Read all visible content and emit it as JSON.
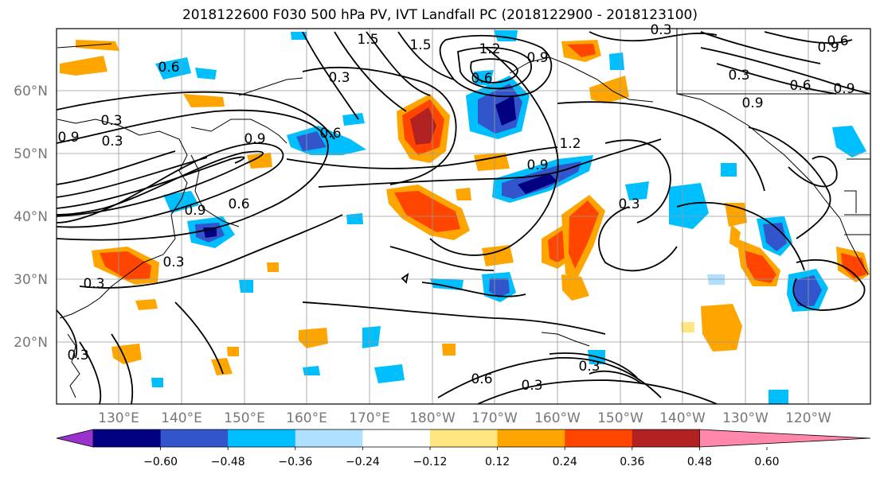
{
  "title": "2018122600 F030 500 hPa PV, IVT Landfall PC (2018122900 - 2018123100)",
  "lat_labels": [
    "60°N",
    "50°N",
    "40°N",
    "30°N",
    "20°N"
  ],
  "lon_labels": [
    "130°E",
    "140°E",
    "150°E",
    "160°E",
    "170°E",
    "180°W",
    "170°W",
    "160°W",
    "150°W",
    "140°W",
    "130°W",
    "120°W"
  ],
  "colorbar": {
    "colors": [
      "#9933cc",
      "#000080",
      "#3355cc",
      "#00bfff",
      "#b0e0ff",
      "#ffffff",
      "#ffe680",
      "#ffa500",
      "#ff4500",
      "#b22222",
      "#ff88aa"
    ],
    "tick_labels": [
      "-0.60",
      "-0.48",
      "-0.36",
      "-0.24",
      "-0.12",
      "0.12",
      "0.24",
      "0.36",
      "0.48",
      "0.60"
    ]
  },
  "contour_labels": [
    "0.3",
    "0.9",
    "1.5",
    "0.6",
    "0.9",
    "0.3",
    "0.6",
    "0.9",
    "0.3",
    "0.6",
    "0.9",
    "0.9",
    "1.2",
    "0.6",
    "0.9",
    "0.6",
    "0.9",
    "0.3",
    "0.3",
    "0.3",
    "0.6",
    "0.3",
    "0.3",
    "0.3",
    "0.3",
    "0.6",
    "0.9",
    "1.5",
    "0.3",
    "1.2"
  ]
}
